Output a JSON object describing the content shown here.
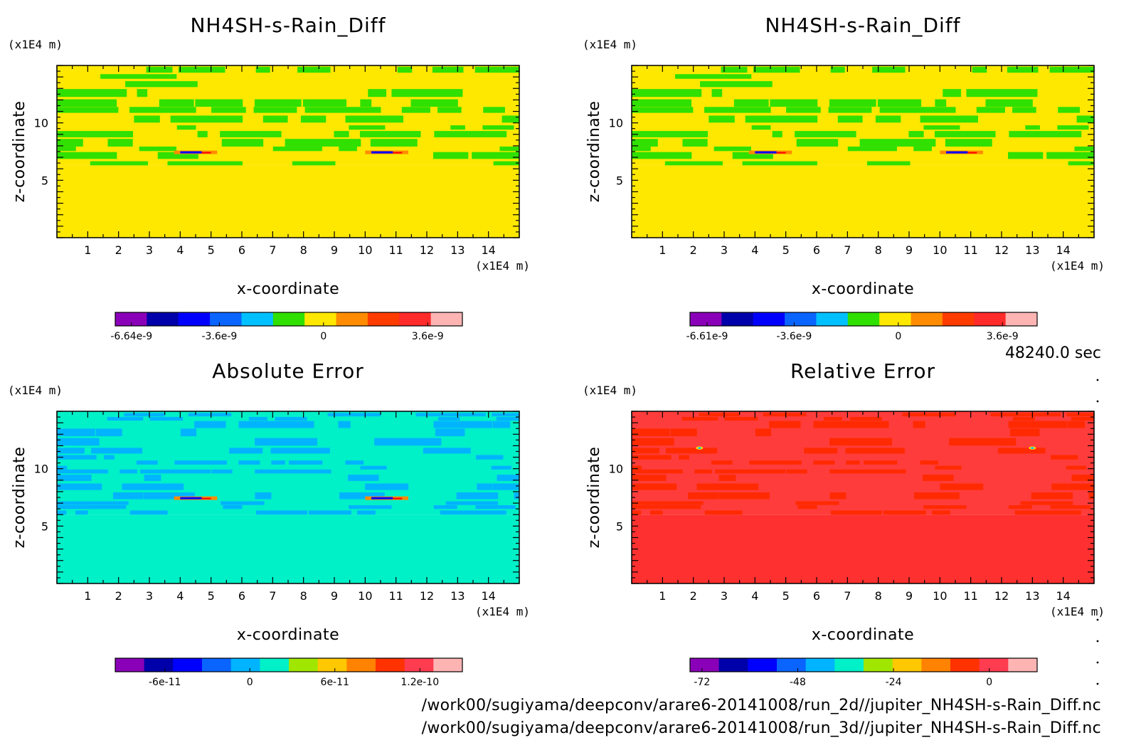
{
  "time_label": "48240.0 sec",
  "footer": {
    "file_2d": "/work00/sugiyama/deepconv/arare6-20141008/run_2d//jupiter_NH4SH-s-Rain_Diff.nc",
    "file_3d": "/work00/sugiyama/deepconv/arare6-20141008/run_3d//jupiter_NH4SH-s-Rain_Diff.nc"
  },
  "chart_data": [
    {
      "type": "heatmap",
      "title": "NH4SH-s-Rain_Diff",
      "xlabel": "x-coordinate",
      "ylabel": "z-coordinate",
      "x_unit": "(x1E4 m)",
      "y_unit": "(x1E4 m)",
      "xlim": [
        0,
        15
      ],
      "ylim": [
        0,
        15
      ],
      "x_ticks": [
        1,
        2,
        3,
        4,
        5,
        6,
        7,
        8,
        9,
        10,
        11,
        12,
        13,
        14
      ],
      "y_ticks": [
        5,
        10
      ],
      "field": {
        "dominant_low": "yellow",
        "dominant_high": "green/yellow striped",
        "transition_z": 6.3,
        "features_x": [
          4.5,
          10.7
        ],
        "features_z": 7.4
      },
      "colorbar": {
        "tick_labels": [
          "-6.64e-9",
          "-3.6e-9",
          "0",
          "3.6e-9"
        ],
        "tick_values": [
          -6.64e-09,
          -3.6e-09,
          0,
          3.6e-09
        ],
        "range": [
          -7.2e-09,
          4.8e-09
        ],
        "colors": [
          "#8a00b8",
          "#0000aa",
          "#0000ff",
          "#0a64ff",
          "#00c0ff",
          "#30e000",
          "#ffe800",
          "#ff8c00",
          "#ff3c00",
          "#ff2a2a",
          "#ffb4b4"
        ]
      }
    },
    {
      "type": "heatmap",
      "title": "NH4SH-s-Rain_Diff",
      "xlabel": "x-coordinate",
      "ylabel": "z-coordinate",
      "x_unit": "(x1E4 m)",
      "y_unit": "(x1E4 m)",
      "xlim": [
        0,
        15
      ],
      "ylim": [
        0,
        15
      ],
      "x_ticks": [
        1,
        2,
        3,
        4,
        5,
        6,
        7,
        8,
        9,
        10,
        11,
        12,
        13,
        14
      ],
      "y_ticks": [
        5,
        10
      ],
      "field": {
        "dominant_low": "yellow",
        "dominant_high": "green/yellow striped",
        "transition_z": 6.3,
        "features_x": [
          4.5,
          10.7
        ],
        "features_z": 7.4
      },
      "colorbar": {
        "tick_labels": [
          "-6.61e-9",
          "-3.6e-9",
          "0",
          "3.6e-9"
        ],
        "tick_values": [
          -6.61e-09,
          -3.6e-09,
          0,
          3.6e-09
        ],
        "range": [
          -7.2e-09,
          4.8e-09
        ],
        "colors": [
          "#8a00b8",
          "#0000aa",
          "#0000ff",
          "#0a64ff",
          "#00c0ff",
          "#30e000",
          "#ffe800",
          "#ff8c00",
          "#ff3c00",
          "#ff2a2a",
          "#ffb4b4"
        ]
      }
    },
    {
      "type": "heatmap",
      "title": "Absolute Error",
      "xlabel": "x-coordinate",
      "ylabel": "z-coordinate",
      "x_unit": "(x1E4 m)",
      "y_unit": "(x1E4 m)",
      "xlim": [
        0,
        15
      ],
      "ylim": [
        0,
        15
      ],
      "x_ticks": [
        1,
        2,
        3,
        4,
        5,
        6,
        7,
        8,
        9,
        10,
        11,
        12,
        13,
        14
      ],
      "y_ticks": [
        5,
        10
      ],
      "field": {
        "dominant_low": "aquamarine",
        "dominant_high": "blue/aquamarine striped",
        "transition_z": 6.0,
        "features_x": [
          4.5,
          10.7
        ],
        "features_z": 7.4
      },
      "colorbar": {
        "tick_labels": [
          "-6e-11",
          "0",
          "6e-11",
          "1.2e-10"
        ],
        "tick_values": [
          -6e-11,
          0,
          6e-11,
          1.2e-10
        ],
        "range": [
          -9.5e-11,
          1.5e-10
        ],
        "colors": [
          "#8a00b8",
          "#0000aa",
          "#0000ff",
          "#0a64ff",
          "#00b4ff",
          "#00f0c8",
          "#a0e600",
          "#ffc800",
          "#ff8200",
          "#ff3200",
          "#ff3c50",
          "#ffb4b4"
        ]
      }
    },
    {
      "type": "heatmap",
      "title": "Relative Error",
      "xlabel": "x-coordinate",
      "ylabel": "z-coordinate",
      "x_unit": "(x1E4 m)",
      "y_unit": "(x1E4 m)",
      "xlim": [
        0,
        15
      ],
      "ylim": [
        0,
        15
      ],
      "x_ticks": [
        1,
        2,
        3,
        4,
        5,
        6,
        7,
        8,
        9,
        10,
        11,
        12,
        13,
        14
      ],
      "y_ticks": [
        5,
        10
      ],
      "field": {
        "dominant_low": "red",
        "dominant_high": "red/orange-red",
        "transition_z": 6.0,
        "features_x": [
          2.2,
          13.0
        ],
        "features_z": 11.8
      },
      "colorbar": {
        "tick_labels": [
          "-72",
          "-48",
          "-24",
          "0"
        ],
        "tick_values": [
          -72,
          -48,
          -24,
          0
        ],
        "range": [
          -75,
          12
        ],
        "colors": [
          "#8a00b8",
          "#0000aa",
          "#0000ff",
          "#0a64ff",
          "#00b4ff",
          "#00f0c8",
          "#a0e600",
          "#ffc800",
          "#ff8200",
          "#ff3200",
          "#ff3c50",
          "#ffb4b4"
        ]
      }
    }
  ]
}
